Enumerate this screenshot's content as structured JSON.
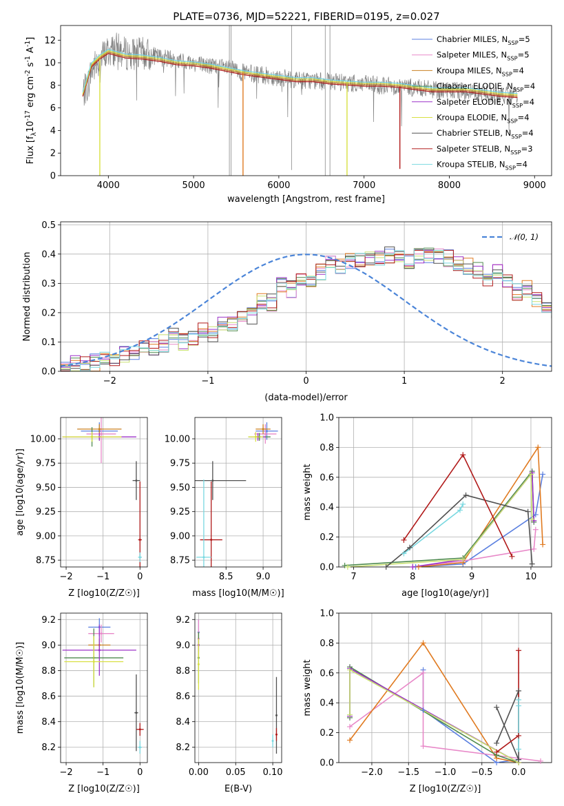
{
  "figure_title": "PLATE=0736, MJD=52221, FIBERID=0195, z=0.027",
  "series_names": [
    "Chabrier MILES, N_{SSP}=5",
    "Salpeter MILES, N_{SSP}=5",
    "Kroupa MILES, N_{SSP}=4",
    "Chabrier ELODIE, N_{SSP}=4",
    "Salpeter ELODIE, N_{SSP}=4",
    "Kroupa ELODIE, N_{SSP}=4",
    "Chabrier STELIB, N_{SSP}=4",
    "Salpeter STELIB, N_{SSP}=3",
    "Kroupa STELIB, N_{SSP}=4"
  ],
  "colors": {
    "data_spectrum": "#808080",
    "series": [
      "#5a7fe0",
      "#e888c8",
      "#c87f20",
      "#4e8a4e",
      "#9b30c8",
      "#d8e040",
      "#505050",
      "#b01818",
      "#78d8e0"
    ],
    "hist_series": [
      "#5a7fe0",
      "#e888c8",
      "#e07a20",
      "#4e8a4e",
      "#9b30c8",
      "#c8e070",
      "#505050",
      "#b01818",
      "#78d8e0"
    ],
    "gaussian": "#4a84d8",
    "orange_line": "#e07a20"
  },
  "chart_data": [
    {
      "type": "line",
      "panel": "spectrum",
      "xlabel": "wavelength [Angstrom, rest frame]",
      "ylabel": "Flux [f_λ10^{-17} erg cm^{-2} s^{-1} A^{-1}]",
      "xlim": [
        3440,
        9200
      ],
      "ylim": [
        0,
        13.3
      ],
      "xticks": [
        4000,
        5000,
        6000,
        7000,
        8000,
        9000
      ],
      "yticks": [
        0,
        2,
        4,
        6,
        8,
        10,
        12
      ],
      "legend_position": "top-right",
      "grid": false,
      "continuum": {
        "wavelength": [
          3700,
          3760,
          3800,
          3900,
          4000,
          4100,
          4200,
          4400,
          4600,
          4800,
          5000,
          5200,
          5400,
          5600,
          5800,
          6000,
          6200,
          6400,
          6600,
          6800,
          7000,
          7200,
          7400,
          7600,
          7800,
          8000,
          8200,
          8400,
          8600,
          8800
        ],
        "flux": [
          7.3,
          8.0,
          9.3,
          10.3,
          11.0,
          11.2,
          10.8,
          10.8,
          10.5,
          10.2,
          10.0,
          9.7,
          9.5,
          9.1,
          8.9,
          8.7,
          8.5,
          8.4,
          8.3,
          8.2,
          8.1,
          8.0,
          7.9,
          7.8,
          7.6,
          7.5,
          7.5,
          7.3,
          7.1,
          7.1
        ]
      }
    },
    {
      "type": "histogram",
      "panel": "residuals",
      "xlabel": "(data-model)/error",
      "ylabel": "Normed distribution",
      "xlim": [
        -2.5,
        2.5
      ],
      "ylim": [
        0,
        0.51
      ],
      "xticks": [
        -2,
        -1,
        0,
        1,
        2
      ],
      "yticks": [
        0.0,
        0.1,
        0.2,
        0.3,
        0.4,
        0.5
      ],
      "grid": true,
      "legend": "𝒩(0, 1)",
      "legend_position": "top-right",
      "bin_width": 0.1,
      "bins_start": -2.5,
      "heights": [
        0.02,
        0.025,
        0.025,
        0.03,
        0.04,
        0.045,
        0.06,
        0.065,
        0.09,
        0.085,
        0.095,
        0.12,
        0.1,
        0.115,
        0.145,
        0.13,
        0.17,
        0.16,
        0.2,
        0.19,
        0.24,
        0.235,
        0.29,
        0.28,
        0.32,
        0.3,
        0.34,
        0.37,
        0.36,
        0.38,
        0.385,
        0.38,
        0.39,
        0.395,
        0.39,
        0.38,
        0.395,
        0.4,
        0.39,
        0.385,
        0.37,
        0.36,
        0.345,
        0.32,
        0.335,
        0.3,
        0.27,
        0.28,
        0.24,
        0.23,
        0.2,
        0.19,
        0.17,
        0.145,
        0.13,
        0.12,
        0.11,
        0.09,
        0.085,
        0.08,
        0.07,
        0.06,
        0.055,
        0.05,
        0.045,
        0.04,
        0.035,
        0.03,
        0.03,
        0.025,
        0.025
      ]
    },
    {
      "type": "scatter",
      "panel": "age-Z",
      "xlabel": "Z [log10(Z/Z☉)]",
      "ylabel": "age [log10(age/yr)]",
      "xlim": [
        -2.15,
        0.2
      ],
      "ylim": [
        8.68,
        10.22
      ],
      "xticks": [
        -2,
        -1,
        0
      ],
      "yticks": [
        8.75,
        9.0,
        9.25,
        9.5,
        9.75,
        10.0
      ],
      "grid": true,
      "points": [
        {
          "series": 0,
          "x": -1.1,
          "y": 10.08,
          "xerr": 0.5,
          "yerr": 0.09
        },
        {
          "series": 1,
          "x": -1.05,
          "y": 10.05,
          "xerr": 0.4,
          "yerr": 0.3
        },
        {
          "series": 2,
          "x": -1.1,
          "y": 10.1,
          "xerr": 0.6,
          "yerr": 0.05
        },
        {
          "series": 3,
          "x": -1.3,
          "y": 10.02,
          "xerr": 0.8,
          "yerr": 0.1
        },
        {
          "series": 4,
          "x": -1.1,
          "y": 10.02,
          "xerr": 1.0,
          "yerr": 0.04
        },
        {
          "series": 5,
          "x": -1.3,
          "y": 10.02,
          "xerr": 0.8,
          "yerr": 0.05
        },
        {
          "series": 6,
          "x": -0.1,
          "y": 9.57,
          "xerr": 0.1,
          "yerr": 0.2
        },
        {
          "series": 7,
          "x": 0.0,
          "y": 8.96,
          "xerr": 0.05,
          "yerr": 0.6
        },
        {
          "series": 8,
          "x": 0.0,
          "y": 8.78,
          "xerr": 0.05,
          "yerr": 0.05
        }
      ]
    },
    {
      "type": "scatter",
      "panel": "age-mass",
      "xlabel": "mass [log10(M/M☉)]",
      "ylabel": "",
      "xlim": [
        8.08,
        9.25
      ],
      "ylim": [
        8.68,
        10.22
      ],
      "xticks": [
        8.5,
        9.0
      ],
      "yticks": [
        8.75,
        9.0,
        9.25,
        9.5,
        9.75,
        10.0
      ],
      "grid": true,
      "points": [
        {
          "series": 0,
          "x": 9.05,
          "y": 10.08,
          "xerr": 0.15,
          "yerr": 0.09
        },
        {
          "series": 1,
          "x": 9.03,
          "y": 10.05,
          "xerr": 0.15,
          "yerr": 0.1
        },
        {
          "series": 2,
          "x": 9.0,
          "y": 10.1,
          "xerr": 0.1,
          "yerr": 0.05
        },
        {
          "series": 3,
          "x": 8.95,
          "y": 10.02,
          "xerr": 0.15,
          "yerr": 0.04
        },
        {
          "series": 4,
          "x": 8.93,
          "y": 10.02,
          "xerr": 0.1,
          "yerr": 0.04
        },
        {
          "series": 5,
          "x": 8.9,
          "y": 10.02,
          "xerr": 0.1,
          "yerr": 0.05
        },
        {
          "series": 6,
          "x": 8.32,
          "y": 9.57,
          "xerr": 0.45,
          "yerr": 0.2
        },
        {
          "series": 7,
          "x": 8.3,
          "y": 8.96,
          "xerr": 0.15,
          "yerr": 0.6
        },
        {
          "series": 8,
          "x": 8.2,
          "y": 8.78,
          "xerr": 0.1,
          "yerr": 0.8
        }
      ]
    },
    {
      "type": "line",
      "panel": "weight-age",
      "xlabel": "age [log10(age/yr)]",
      "ylabel": "mass weight",
      "xlim": [
        6.75,
        10.35
      ],
      "ylim": [
        0,
        1.0
      ],
      "xticks": [
        7,
        8,
        9,
        10
      ],
      "yticks": [
        0.0,
        0.2,
        0.4,
        0.6,
        0.8,
        1.0
      ],
      "grid": true,
      "series": [
        {
          "color_index": 0,
          "x": [
            8.05,
            8.85,
            10.08,
            10.2
          ],
          "y": [
            0.0,
            0.02,
            0.35,
            0.62
          ]
        },
        {
          "color_index": 1,
          "x": [
            8.0,
            8.85,
            10.05,
            10.08
          ],
          "y": [
            0.0,
            0.04,
            0.12,
            0.25
          ]
        },
        {
          "color_index": 2,
          "x": [
            8.1,
            8.85,
            10.12,
            10.2
          ],
          "y": [
            0.0,
            0.03,
            0.8,
            0.15
          ]
        },
        {
          "color_index": 3,
          "x": [
            6.85,
            8.85,
            10.02,
            10.05
          ],
          "y": [
            0.01,
            0.06,
            0.64,
            0.3
          ]
        },
        {
          "color_index": 4,
          "x": [
            8.0,
            8.85,
            10.02,
            10.05
          ],
          "y": [
            0.0,
            0.05,
            0.63,
            0.31
          ]
        },
        {
          "color_index": 5,
          "x": [
            6.9,
            8.85,
            10.0,
            10.02
          ],
          "y": [
            0.0,
            0.05,
            0.62,
            0.32
          ]
        },
        {
          "color_index": 6,
          "x": [
            7.55,
            7.95,
            8.9,
            9.95,
            10.02
          ],
          "y": [
            0.0,
            0.13,
            0.48,
            0.37,
            0.02
          ]
        },
        {
          "color_index": 7,
          "x": [
            7.85,
            8.85,
            9.68
          ],
          "y": [
            0.18,
            0.75,
            0.07
          ]
        },
        {
          "color_index": 8,
          "x": [
            7.85,
            8.8,
            8.85
          ],
          "y": [
            0.09,
            0.38,
            0.42
          ]
        }
      ]
    },
    {
      "type": "scatter",
      "panel": "mass-Z",
      "xlabel": "Z [log10(Z/Z☉)]",
      "ylabel": "mass [log10(M/M☉)]",
      "xlim": [
        -2.15,
        0.2
      ],
      "ylim": [
        8.08,
        9.25
      ],
      "xticks": [
        -2,
        -1,
        0
      ],
      "yticks": [
        8.2,
        8.4,
        8.6,
        8.8,
        9.0,
        9.2
      ],
      "grid": true,
      "points": [
        {
          "series": 0,
          "x": -1.1,
          "y": 9.14,
          "xerr": 0.3,
          "yerr": 0.07
        },
        {
          "series": 1,
          "x": -1.05,
          "y": 9.09,
          "xerr": 0.35,
          "yerr": 0.07
        },
        {
          "series": 2,
          "x": -1.1,
          "y": 9.0,
          "xerr": 0.3,
          "yerr": 0.05
        },
        {
          "series": 3,
          "x": -1.25,
          "y": 8.9,
          "xerr": 0.8,
          "yerr": 0.23
        },
        {
          "series": 4,
          "x": -1.1,
          "y": 8.96,
          "xerr": 1.0,
          "yerr": 0.2
        },
        {
          "series": 5,
          "x": -1.25,
          "y": 8.87,
          "xerr": 0.8,
          "yerr": 0.2
        },
        {
          "series": 6,
          "x": -0.1,
          "y": 8.47,
          "xerr": 0.05,
          "yerr": 0.3
        },
        {
          "series": 7,
          "x": 0.0,
          "y": 8.34,
          "xerr": 0.1,
          "yerr": 0.05
        },
        {
          "series": 8,
          "x": 0.0,
          "y": 8.2,
          "xerr": 0.05,
          "yerr": 0.05
        }
      ]
    },
    {
      "type": "scatter",
      "panel": "mass-ebv",
      "xlabel": "E(B-V)",
      "ylabel": "",
      "xlim": [
        -0.005,
        0.112
      ],
      "ylim": [
        8.08,
        9.25
      ],
      "xticks": [
        0.0,
        0.05,
        0.1
      ],
      "yticks": [
        8.2,
        8.4,
        8.6,
        8.8,
        9.0,
        9.2
      ],
      "grid": true,
      "points": [
        {
          "series": 0,
          "x": 0.0,
          "y": 9.1,
          "xerr": 0,
          "yerr": 0.1
        },
        {
          "series": 1,
          "x": 0.0,
          "y": 9.05,
          "xerr": 0,
          "yerr": 0.15
        },
        {
          "series": 2,
          "x": 0.0,
          "y": 9.0,
          "xerr": 0,
          "yerr": 0.1
        },
        {
          "series": 3,
          "x": 0.0,
          "y": 8.9,
          "xerr": 0,
          "yerr": 0.2
        },
        {
          "series": 4,
          "x": 0.0,
          "y": 9.0,
          "xerr": 0,
          "yerr": 0.05
        },
        {
          "series": 5,
          "x": 0.0,
          "y": 8.85,
          "xerr": 0,
          "yerr": 0.2
        },
        {
          "series": 6,
          "x": 0.105,
          "y": 8.45,
          "xerr": 0,
          "yerr": 0.3
        },
        {
          "series": 7,
          "x": 0.105,
          "y": 8.3,
          "xerr": 0,
          "yerr": 0.05
        },
        {
          "series": 8,
          "x": 0.1,
          "y": 8.25,
          "xerr": 0,
          "yerr": 0.05
        }
      ]
    },
    {
      "type": "line",
      "panel": "weight-Z",
      "xlabel": "Z [log10(Z/Z☉)]",
      "ylabel": "mass weight",
      "xlim": [
        -2.45,
        0.45
      ],
      "ylim": [
        0,
        1.0
      ],
      "xticks": [
        -2.0,
        -1.5,
        -1.0,
        -0.5,
        0.0
      ],
      "yticks": [
        0.0,
        0.2,
        0.4,
        0.6,
        0.8,
        1.0
      ],
      "grid": true,
      "series": [
        {
          "color_index": 0,
          "x": [
            -1.3,
            -1.3,
            -0.3,
            0.0
          ],
          "y": [
            0.62,
            0.35,
            0.0,
            0.02
          ]
        },
        {
          "color_index": 1,
          "x": [
            -2.3,
            -1.3,
            -1.3,
            0.3
          ],
          "y": [
            0.24,
            0.6,
            0.11,
            0.01
          ]
        },
        {
          "color_index": 2,
          "x": [
            -2.3,
            -1.3,
            -0.3,
            0.0
          ],
          "y": [
            0.15,
            0.8,
            0.03,
            0.0
          ]
        },
        {
          "color_index": 3,
          "x": [
            -2.3,
            -2.3,
            -0.3,
            0.0
          ],
          "y": [
            0.3,
            0.64,
            0.05,
            0.0
          ]
        },
        {
          "color_index": 4,
          "x": [
            -2.3,
            -2.3,
            0.0
          ],
          "y": [
            0.31,
            0.63,
            0.0
          ]
        },
        {
          "color_index": 5,
          "x": [
            -2.3,
            -2.3,
            0.0
          ],
          "y": [
            0.32,
            0.62,
            0.0
          ]
        },
        {
          "color_index": 6,
          "x": [
            -0.3,
            0.0,
            0.0,
            -0.3
          ],
          "y": [
            0.37,
            0.02,
            0.48,
            0.13
          ]
        },
        {
          "color_index": 7,
          "x": [
            -0.3,
            0.0,
            0.0
          ],
          "y": [
            0.07,
            0.18,
            0.75
          ]
        },
        {
          "color_index": 8,
          "x": [
            0.0,
            0.0,
            0.0
          ],
          "y": [
            0.09,
            0.42,
            0.38
          ]
        }
      ]
    }
  ]
}
